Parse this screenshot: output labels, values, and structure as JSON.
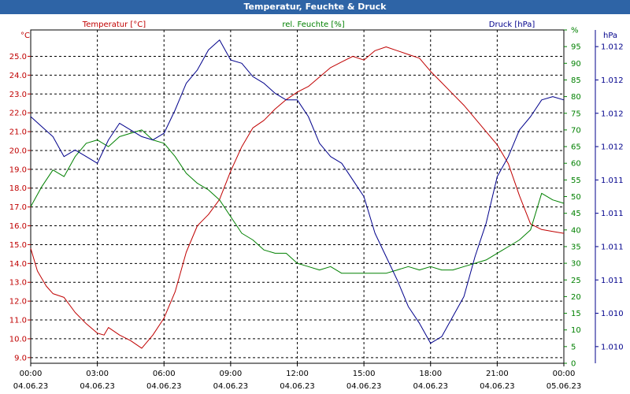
{
  "window": {
    "title": "Temperatur, Feuchte & Druck"
  },
  "colors": {
    "temperature": "#c00000",
    "humidity": "#008000",
    "pressure": "#00008b",
    "titlebar": "#2e64a6"
  },
  "chart_data": {
    "type": "line",
    "title": "Temperatur, Feuchte & Druck",
    "x_time_labels": [
      "00:00",
      "03:00",
      "06:00",
      "09:00",
      "12:00",
      "15:00",
      "18:00",
      "21:00",
      "00:00"
    ],
    "x_date_labels": [
      "04.06.23",
      "04.06.23",
      "04.06.23",
      "04.06.23",
      "04.06.23",
      "04.06.23",
      "04.06.23",
      "04.06.23",
      "05.06.23"
    ],
    "xlim": [
      0,
      24
    ],
    "axes": {
      "temperature": {
        "unit": "°C",
        "title": "Temperatur [°C]",
        "ylim": [
          8.7,
          26.4
        ],
        "ticks": [
          9.0,
          10.0,
          11.0,
          12.0,
          13.0,
          14.0,
          15.0,
          16.0,
          17.0,
          18.0,
          19.0,
          20.0,
          21.0,
          22.0,
          23.0,
          24.0,
          25.0
        ],
        "tick_labels": [
          "9.0",
          "10.0",
          "11.0",
          "12.0",
          "13.0",
          "14.0",
          "15.0",
          "16.0",
          "17.0",
          "18.0",
          "19.0",
          "20.0",
          "21.0",
          "22.0",
          "23.0",
          "24.0",
          "25.0"
        ]
      },
      "humidity": {
        "unit": "%",
        "title": "rel. Feuchte [%]",
        "ylim": [
          0,
          100
        ],
        "ticks": [
          0,
          5,
          10,
          15,
          20,
          25,
          30,
          35,
          40,
          45,
          50,
          55,
          60,
          65,
          70,
          75,
          80,
          85,
          90,
          95,
          100
        ],
        "tick_labels": [
          "0",
          "5",
          "10",
          "15",
          "20",
          "25",
          "30",
          "35",
          "40",
          "45",
          "50",
          "55",
          "60",
          "65",
          "70",
          "75",
          "80",
          "85",
          "90",
          "95",
          "%"
        ]
      },
      "pressure": {
        "unit": "hPa",
        "title": "Druck [hPa]",
        "ylim": [
          0,
          100
        ],
        "ticks": [
          5,
          15,
          25,
          35,
          45,
          55,
          65,
          75,
          85,
          95
        ],
        "tick_labels": [
          "1.010",
          "1.010",
          "1.011",
          "1.011",
          "1.011",
          "1.011",
          "1.012",
          "1.012",
          "1.012",
          "1.012"
        ]
      }
    },
    "series": [
      {
        "name": "Temperatur [°C]",
        "axis": "temperature",
        "x": [
          0,
          0.3,
          0.7,
          1,
          1.5,
          2,
          2.5,
          3,
          3.3,
          3.5,
          4,
          4.5,
          5,
          5.5,
          6,
          6.5,
          7,
          7.5,
          8,
          8.5,
          9,
          9.5,
          10,
          10.5,
          11,
          11.5,
          12,
          12.5,
          13,
          13.5,
          14,
          14.5,
          15,
          15.5,
          16,
          16.5,
          17,
          17.5,
          18,
          18.5,
          19,
          19.5,
          20,
          20.5,
          21,
          21.5,
          22,
          22.5,
          23,
          23.5,
          24
        ],
        "y": [
          14.8,
          13.6,
          12.8,
          12.4,
          12.2,
          11.4,
          10.8,
          10.3,
          10.2,
          10.6,
          10.2,
          9.9,
          9.5,
          10.2,
          11.1,
          12.5,
          14.6,
          16.0,
          16.6,
          17.4,
          18.9,
          20.2,
          21.2,
          21.6,
          22.2,
          22.7,
          23.1,
          23.4,
          23.9,
          24.4,
          24.7,
          25.0,
          24.8,
          25.3,
          25.5,
          25.3,
          25.1,
          24.9,
          24.2,
          23.6,
          23.0,
          22.4,
          21.7,
          21.0,
          20.3,
          19.3,
          17.6,
          16.1,
          15.8,
          15.7,
          15.6
        ]
      },
      {
        "name": "rel. Feuchte [%]",
        "axis": "humidity",
        "x": [
          0,
          0.5,
          1,
          1.5,
          2,
          2.5,
          3,
          3.5,
          4,
          4.5,
          5,
          5.5,
          6,
          6.5,
          7,
          7.5,
          8,
          8.5,
          9,
          9.5,
          10,
          10.5,
          11,
          11.5,
          12,
          12.5,
          13,
          13.5,
          14,
          14.5,
          15,
          15.5,
          16,
          16.5,
          17,
          17.5,
          18,
          18.5,
          19,
          19.5,
          20,
          20.5,
          21,
          21.5,
          22,
          22.5,
          23,
          23.5,
          24
        ],
        "y": [
          47,
          53,
          58,
          56,
          62,
          66,
          67,
          65,
          68,
          69,
          70,
          67,
          66,
          62,
          57,
          54,
          52,
          49,
          44,
          39,
          37,
          34,
          33,
          33,
          30,
          29,
          28,
          29,
          27,
          27,
          27,
          27,
          27,
          28,
          29,
          28,
          29,
          28,
          28,
          29,
          30,
          31,
          33,
          35,
          37,
          40,
          51,
          49,
          48
        ]
      },
      {
        "name": "Druck [hPa]",
        "axis": "pressure",
        "x": [
          0,
          0.5,
          1,
          1.5,
          2,
          2.5,
          3,
          3.5,
          4,
          4.5,
          5,
          5.5,
          6,
          6.5,
          7,
          7.5,
          8,
          8.5,
          9,
          9.5,
          10,
          10.5,
          11,
          11.5,
          12,
          12.5,
          13,
          13.5,
          14,
          14.5,
          15,
          15.5,
          16,
          16.5,
          17,
          17.5,
          18,
          18.5,
          19,
          19.5,
          20,
          20.5,
          21,
          21.5,
          22,
          22.5,
          23,
          23.5,
          24
        ],
        "y": [
          74,
          71,
          68,
          62,
          64,
          62,
          60,
          67,
          72,
          70,
          68,
          67,
          69,
          76,
          84,
          88,
          94,
          97,
          91,
          90,
          86,
          84,
          81,
          79,
          79,
          74,
          66,
          62,
          60,
          55,
          50,
          39,
          32,
          25,
          17,
          12,
          6,
          8,
          14,
          20,
          32,
          42,
          56,
          62,
          70,
          74,
          79,
          80,
          79
        ]
      }
    ]
  }
}
